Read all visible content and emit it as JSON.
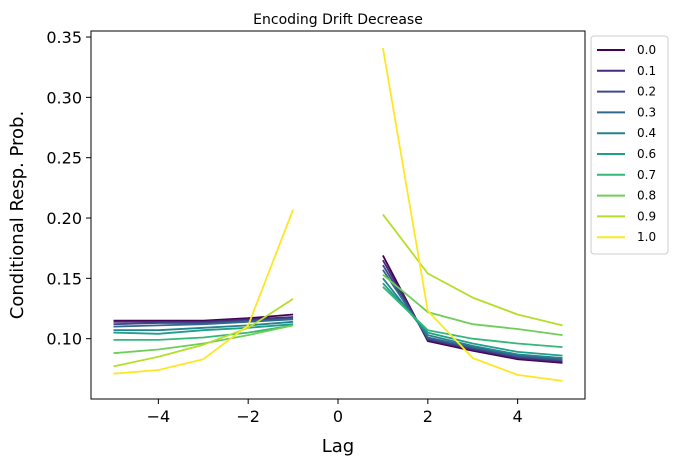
{
  "chart_data": {
    "type": "line",
    "title": "Encoding Drift Decrease",
    "xlabel": "Lag",
    "ylabel": "Conditional Resp. Prob.",
    "xlim": [
      -5.5,
      5.5
    ],
    "ylim": [
      0.05,
      0.355
    ],
    "xticks": [
      -4,
      -2,
      0,
      2,
      4
    ],
    "xtick_labels": [
      "−4",
      "−2",
      "0",
      "2",
      "4"
    ],
    "yticks": [
      0.1,
      0.15,
      0.2,
      0.25,
      0.3,
      0.35
    ],
    "ytick_labels": [
      "0.10",
      "0.15",
      "0.20",
      "0.25",
      "0.30",
      "0.35"
    ],
    "grid": false,
    "legend_position": "outside-right",
    "x_left": [
      -5,
      -4,
      -3,
      -2,
      -1
    ],
    "x_right": [
      1,
      2,
      3,
      4,
      5
    ],
    "series": [
      {
        "name": "0.0",
        "color": "#440154",
        "left": [
          0.115,
          0.115,
          0.115,
          0.117,
          0.12
        ],
        "right": [
          0.169,
          0.098,
          0.09,
          0.083,
          0.08
        ]
      },
      {
        "name": "0.1",
        "color": "#482878",
        "left": [
          0.114,
          0.114,
          0.114,
          0.116,
          0.118
        ],
        "right": [
          0.165,
          0.099,
          0.091,
          0.084,
          0.081
        ]
      },
      {
        "name": "0.2",
        "color": "#3e4989",
        "left": [
          0.112,
          0.113,
          0.113,
          0.115,
          0.117
        ],
        "right": [
          0.161,
          0.1,
          0.092,
          0.085,
          0.082
        ]
      },
      {
        "name": "0.3",
        "color": "#31688e",
        "left": [
          0.11,
          0.111,
          0.112,
          0.114,
          0.116
        ],
        "right": [
          0.157,
          0.101,
          0.093,
          0.086,
          0.083
        ]
      },
      {
        "name": "0.4",
        "color": "#26828e",
        "left": [
          0.107,
          0.107,
          0.109,
          0.111,
          0.114
        ],
        "right": [
          0.15,
          0.103,
          0.094,
          0.087,
          0.084
        ]
      },
      {
        "name": "0.6",
        "color": "#1f9e89",
        "left": [
          0.105,
          0.104,
          0.107,
          0.109,
          0.112
        ],
        "right": [
          0.146,
          0.105,
          0.096,
          0.089,
          0.086
        ]
      },
      {
        "name": "0.7",
        "color": "#35b779",
        "left": [
          0.099,
          0.099,
          0.101,
          0.105,
          0.111
        ],
        "right": [
          0.143,
          0.107,
          0.1,
          0.096,
          0.093
        ]
      },
      {
        "name": "0.8",
        "color": "#6ece58",
        "left": [
          0.088,
          0.091,
          0.096,
          0.103,
          0.111
        ],
        "right": [
          0.153,
          0.122,
          0.112,
          0.108,
          0.103
        ]
      },
      {
        "name": "0.9",
        "color": "#b5de2b",
        "left": [
          0.077,
          0.085,
          0.095,
          0.109,
          0.133
        ],
        "right": [
          0.203,
          0.154,
          0.134,
          0.12,
          0.111
        ]
      },
      {
        "name": "1.0",
        "color": "#fde725",
        "left": [
          0.071,
          0.074,
          0.083,
          0.111,
          0.207
        ],
        "right": [
          0.341,
          0.123,
          0.084,
          0.07,
          0.065
        ]
      }
    ]
  }
}
